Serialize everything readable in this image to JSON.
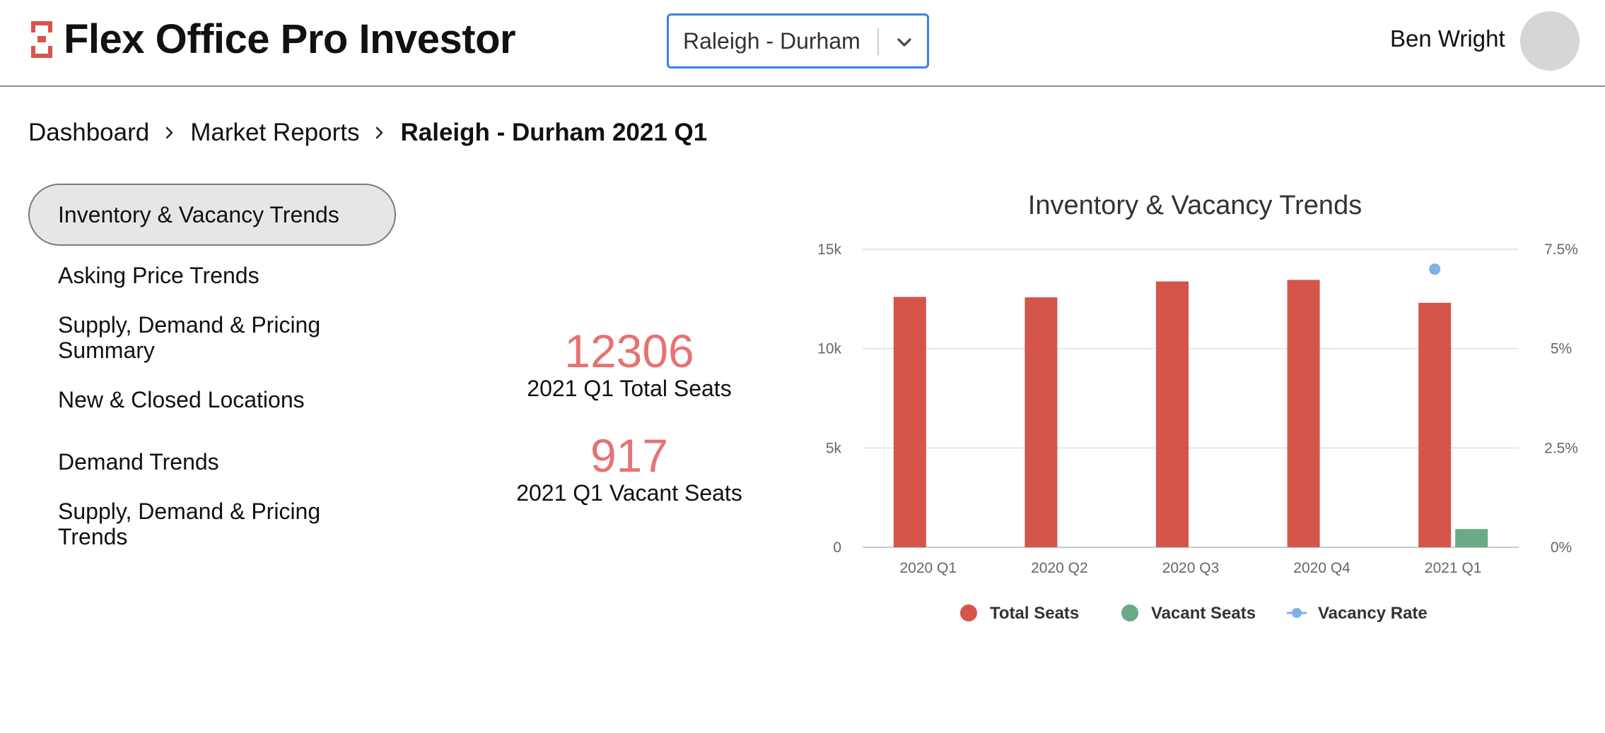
{
  "header": {
    "app_title": "Flex Office Pro Investor",
    "market_select": {
      "value": "Raleigh - Durham"
    },
    "user_name": "Ben Wright"
  },
  "breadcrumb": {
    "items": [
      "Dashboard",
      "Market Reports"
    ],
    "current": "Raleigh - Durham 2021 Q1"
  },
  "sidebar": {
    "items": [
      {
        "label": "Inventory & Vacancy Trends",
        "active": true
      },
      {
        "label": "Asking Price Trends",
        "active": false
      },
      {
        "label": "Supply, Demand & Pricing Summary",
        "active": false
      },
      {
        "label": "New & Closed Locations",
        "active": false
      },
      {
        "label": "Demand Trends",
        "active": false
      },
      {
        "label": "Supply, Demand & Pricing Trends",
        "active": false
      }
    ]
  },
  "stats": {
    "total_seats": {
      "value": "12306",
      "label": "2021 Q1 Total Seats"
    },
    "vacant_seats": {
      "value": "917",
      "label": "2021 Q1 Vacant Seats"
    }
  },
  "colors": {
    "accent": "#d8554a",
    "stat_value": "#e57373",
    "select_border": "#3b82e6",
    "total_seats": "#d5554a",
    "vacant_seats": "#6aaa85",
    "vacancy_rate": "#7fb0e6"
  },
  "chart_data": {
    "type": "bar",
    "title": "Inventory & Vacancy Trends",
    "categories": [
      "2020 Q1",
      "2020 Q2",
      "2020 Q3",
      "2020 Q4",
      "2021 Q1"
    ],
    "y_left": {
      "ticks": [
        "0",
        "5k",
        "10k",
        "15k"
      ],
      "range": [
        0,
        15000
      ]
    },
    "y_right": {
      "ticks": [
        "0%",
        "2.5%",
        "5%",
        "7.5%"
      ],
      "range": [
        0,
        7.5
      ]
    },
    "grid": true,
    "legend_position": "bottom",
    "series": [
      {
        "name": "Total Seats",
        "type": "bar",
        "axis": "left",
        "color": "#d5554a",
        "values": [
          12600,
          12580,
          13380,
          13460,
          12306
        ]
      },
      {
        "name": "Vacant Seats",
        "type": "bar",
        "axis": "left",
        "color": "#6aaa85",
        "values": [
          null,
          null,
          null,
          null,
          917
        ]
      },
      {
        "name": "Vacancy Rate",
        "type": "line",
        "axis": "right",
        "color": "#7fb0e6",
        "values": [
          null,
          null,
          null,
          null,
          7.0
        ]
      }
    ]
  }
}
